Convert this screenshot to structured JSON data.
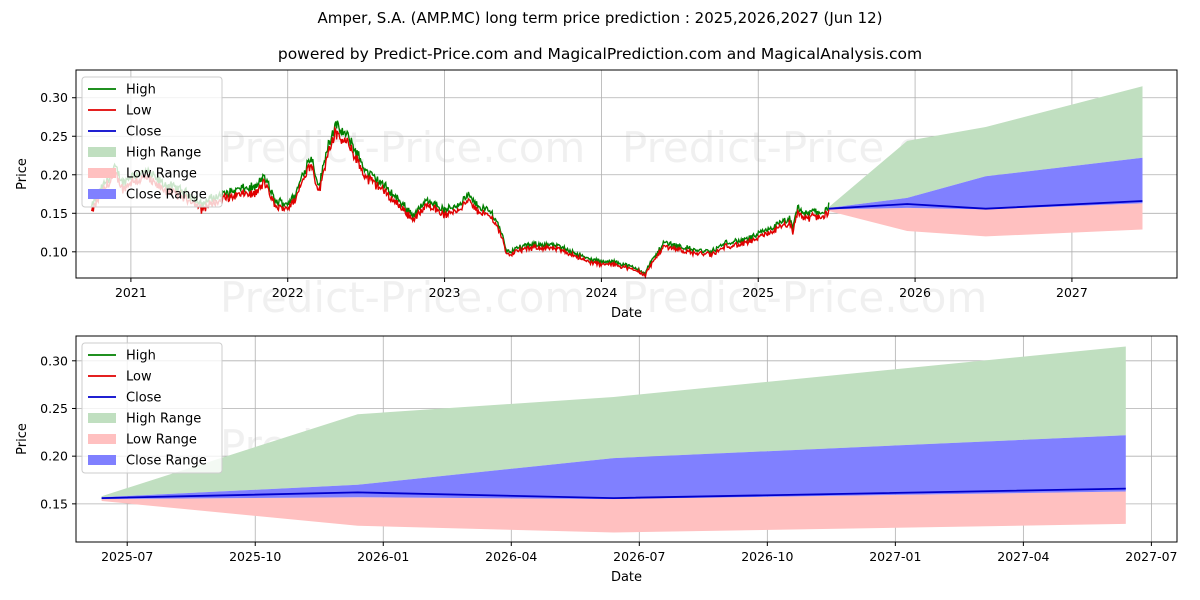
{
  "title": "Amper, S.A. (AMP.MC) long term price prediction : 2025,2026,2027 (Jun 12)",
  "subtitle": "powered by Predict-Price.com and MagicalPrediction.com and MagicalAnalysis.com",
  "watermark": "Predict-Price.com",
  "colors": {
    "high": "#008000",
    "low": "#e00000",
    "close": "#0000cc",
    "high_range": "#c0dfc0",
    "low_range": "#ffc0c0",
    "close_range": "#8080ff"
  },
  "legend": [
    "High",
    "Low",
    "Close",
    "High Range",
    "Low Range",
    "Close Range"
  ],
  "chart_data": [
    {
      "type": "line",
      "name": "history_and_forecast",
      "xlabel": "Date",
      "ylabel": "Price",
      "xlim": [
        2020.65,
        2027.67
      ],
      "ylim": [
        0.066,
        0.336
      ],
      "xticks": [
        2021,
        2022,
        2023,
        2024,
        2025,
        2026,
        2027
      ],
      "xtick_labels": [
        "2021",
        "2022",
        "2023",
        "2024",
        "2025",
        "2026",
        "2027"
      ],
      "yticks": [
        0.1,
        0.15,
        0.2,
        0.25,
        0.3
      ],
      "ytick_labels": [
        "0.10",
        "0.15",
        "0.20",
        "0.25",
        "0.30"
      ],
      "grid": true,
      "legend_position": "top-left",
      "history_keypoints": {
        "x": [
          2020.75,
          2020.8,
          2020.85,
          2020.9,
          2020.95,
          2021.0,
          2021.1,
          2021.2,
          2021.3,
          2021.38,
          2021.45,
          2021.5,
          2021.6,
          2021.7,
          2021.8,
          2021.85,
          2021.92,
          2022.0,
          2022.05,
          2022.1,
          2022.15,
          2022.2,
          2022.25,
          2022.3,
          2022.35,
          2022.4,
          2022.45,
          2022.5,
          2022.6,
          2022.7,
          2022.8,
          2022.9,
          2023.0,
          2023.1,
          2023.15,
          2023.2,
          2023.3,
          2023.35,
          2023.4,
          2023.5,
          2023.6,
          2023.7,
          2023.8,
          2023.9,
          2024.0,
          2024.1,
          2024.2,
          2024.25,
          2024.28,
          2024.3,
          2024.35,
          2024.4,
          2024.5,
          2024.6,
          2024.7,
          2024.8,
          2024.9,
          2025.0,
          2025.1,
          2025.2,
          2025.22,
          2025.25,
          2025.3,
          2025.35,
          2025.42,
          2025.45
        ],
        "close": [
          0.155,
          0.175,
          0.19,
          0.205,
          0.185,
          0.195,
          0.2,
          0.185,
          0.178,
          0.17,
          0.158,
          0.165,
          0.172,
          0.178,
          0.18,
          0.195,
          0.162,
          0.16,
          0.17,
          0.2,
          0.22,
          0.18,
          0.23,
          0.258,
          0.25,
          0.24,
          0.22,
          0.2,
          0.185,
          0.165,
          0.145,
          0.165,
          0.15,
          0.16,
          0.17,
          0.158,
          0.148,
          0.13,
          0.098,
          0.105,
          0.108,
          0.106,
          0.1,
          0.09,
          0.085,
          0.085,
          0.078,
          0.075,
          0.07,
          0.08,
          0.095,
          0.11,
          0.105,
          0.1,
          0.098,
          0.11,
          0.112,
          0.12,
          0.13,
          0.14,
          0.125,
          0.155,
          0.145,
          0.15,
          0.148,
          0.156
        ]
      },
      "forecast": {
        "x": [
          2025.45,
          2025.95,
          2026.45,
          2027.45
        ],
        "close": [
          0.156,
          0.162,
          0.156,
          0.166
        ],
        "high_range": [
          0.158,
          0.244,
          0.262,
          0.315
        ],
        "low_range": [
          0.153,
          0.127,
          0.12,
          0.129
        ],
        "close_range_upper": [
          0.157,
          0.17,
          0.198,
          0.222
        ],
        "close_range_lower": [
          0.155,
          0.157,
          0.155,
          0.163
        ]
      }
    },
    {
      "type": "area",
      "name": "forecast_detail",
      "xlabel": "Date",
      "ylabel": "Price",
      "xlim": [
        2025.4,
        2027.55
      ],
      "ylim": [
        0.11,
        0.326
      ],
      "xticks": [
        2025.5,
        2025.75,
        2026.0,
        2026.25,
        2026.5,
        2026.75,
        2027.0,
        2027.25,
        2027.5
      ],
      "xtick_labels": [
        "2025-07",
        "2025-10",
        "2026-01",
        "2026-04",
        "2026-07",
        "2026-10",
        "2027-01",
        "2027-04",
        "2027-07"
      ],
      "yticks": [
        0.15,
        0.2,
        0.25,
        0.3
      ],
      "ytick_labels": [
        "0.15",
        "0.20",
        "0.25",
        "0.30"
      ],
      "grid": true,
      "legend_position": "top-left",
      "forecast": {
        "x": [
          2025.45,
          2025.95,
          2026.45,
          2027.45
        ],
        "close": [
          0.156,
          0.162,
          0.156,
          0.166
        ],
        "high_range": [
          0.158,
          0.244,
          0.262,
          0.315
        ],
        "low_range": [
          0.153,
          0.127,
          0.12,
          0.129
        ],
        "close_range_upper": [
          0.157,
          0.17,
          0.198,
          0.222
        ],
        "close_range_lower": [
          0.155,
          0.157,
          0.155,
          0.163
        ]
      }
    }
  ]
}
